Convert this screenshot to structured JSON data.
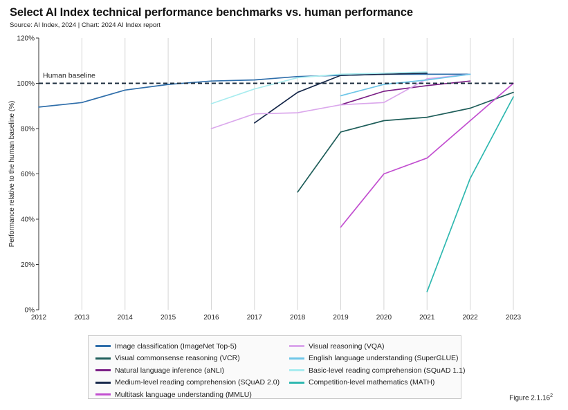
{
  "title": "Select AI Index technical performance benchmarks vs. human performance",
  "source": "Source: AI Index, 2024 | Chart: 2024 AI Index report",
  "figure_label": "Figure 2.1.16",
  "figure_sup": "2",
  "chart_data": {
    "type": "line",
    "title": "Select AI Index technical performance benchmarks vs. human performance",
    "ylabel": "Performance relative to the human baseline (%)",
    "xlabel": "",
    "x": [
      2012,
      2013,
      2014,
      2015,
      2016,
      2017,
      2018,
      2019,
      2020,
      2021,
      2022,
      2023
    ],
    "x_tick_labels": [
      "2012",
      "2013",
      "2014",
      "2015",
      "2016",
      "2017",
      "2018",
      "2019",
      "2020",
      "2021",
      "2022",
      "2023"
    ],
    "y_ticks": [
      0,
      20,
      40,
      60,
      80,
      100,
      120
    ],
    "y_tick_labels": [
      "0%",
      "20%",
      "40%",
      "60%",
      "80%",
      "100%",
      "120%"
    ],
    "ylim": [
      0,
      120
    ],
    "xlim": [
      2012,
      2023
    ],
    "grid": "vertical",
    "legend_position": "bottom",
    "baseline": {
      "value": 100,
      "label": "Human baseline",
      "color": "#1a2b3c"
    },
    "series": [
      {
        "name": "Image classification (ImageNet Top-5)",
        "color": "#2f6eaa",
        "points": [
          [
            2012,
            89.5
          ],
          [
            2013,
            91.5
          ],
          [
            2014,
            97
          ],
          [
            2015,
            99.5
          ],
          [
            2016,
            101
          ],
          [
            2017,
            101.5
          ],
          [
            2018,
            103
          ],
          [
            2019,
            103.5
          ],
          [
            2020,
            104
          ],
          [
            2021,
            104
          ],
          [
            2022,
            104
          ]
        ]
      },
      {
        "name": "Visual commonsense reasoning (VCR)",
        "color": "#1f5e5a",
        "points": [
          [
            2018,
            52
          ],
          [
            2019,
            78.5
          ],
          [
            2020,
            83.5
          ],
          [
            2021,
            85
          ],
          [
            2022,
            89
          ],
          [
            2023,
            96
          ]
        ]
      },
      {
        "name": "Natural language inference (aNLI)",
        "color": "#7b1f86",
        "points": [
          [
            2019,
            90.5
          ],
          [
            2020,
            96.5
          ],
          [
            2021,
            99
          ],
          [
            2022,
            101
          ]
        ]
      },
      {
        "name": "Medium-level reading comprehension (SQuAD 2.0)",
        "color": "#16284a",
        "points": [
          [
            2017,
            82.5
          ],
          [
            2018,
            96
          ],
          [
            2019,
            103.5
          ],
          [
            2020,
            104
          ],
          [
            2021,
            104.5
          ]
        ]
      },
      {
        "name": "Multitask language understanding (MMLU)",
        "color": "#c24fd0",
        "points": [
          [
            2019,
            36.5
          ],
          [
            2020,
            60
          ],
          [
            2021,
            67
          ],
          [
            2023,
            100
          ]
        ]
      },
      {
        "name": "Visual reasoning (VQA)",
        "color": "#dba8ec",
        "points": [
          [
            2016,
            80
          ],
          [
            2017,
            86.5
          ],
          [
            2018,
            87
          ],
          [
            2019,
            90.5
          ],
          [
            2020,
            91.5
          ],
          [
            2021,
            102
          ],
          [
            2022,
            104
          ]
        ]
      },
      {
        "name": "English language understanding (SuperGLUE)",
        "color": "#6ec6e8",
        "points": [
          [
            2019,
            94.5
          ],
          [
            2020,
            99.5
          ],
          [
            2021,
            101.5
          ],
          [
            2022,
            104
          ]
        ]
      },
      {
        "name": "Basic-level reading comprehension (SQuAD 1.1)",
        "color": "#a8ecef",
        "points": [
          [
            2016,
            91
          ],
          [
            2017,
            97.5
          ],
          [
            2018,
            102.5
          ],
          [
            2019,
            104
          ],
          [
            2020,
            104.5
          ],
          [
            2021,
            105
          ]
        ]
      },
      {
        "name": "Competition-level mathematics (MATH)",
        "color": "#2fb8b0",
        "points": [
          [
            2021,
            8
          ],
          [
            2022,
            58
          ],
          [
            2023,
            94
          ]
        ]
      }
    ]
  }
}
